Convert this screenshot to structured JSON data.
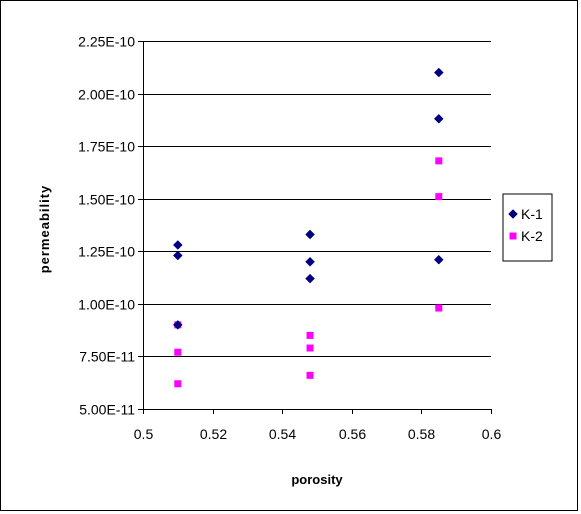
{
  "chart_data": {
    "type": "scatter",
    "title": "",
    "xlabel": "porosity",
    "ylabel": "permeability",
    "xlim": [
      0.5,
      0.6
    ],
    "ylim": [
      5e-11,
      2.25e-10
    ],
    "x_ticks": [
      "0.5",
      "0.52",
      "0.54",
      "0.56",
      "0.58",
      "0.6"
    ],
    "y_ticks": [
      "5.00E-11",
      "7.50E-11",
      "1.00E-10",
      "1.25E-10",
      "1.50E-10",
      "1.75E-10",
      "2.00E-10",
      "2.25E-10"
    ],
    "grid": "horizontal major gridlines",
    "legend_position": "right",
    "series": [
      {
        "name": "K-1",
        "marker": "diamond",
        "color": "#000080",
        "points": [
          {
            "x": 0.51,
            "y": 1.28e-10
          },
          {
            "x": 0.51,
            "y": 1.23e-10
          },
          {
            "x": 0.51,
            "y": 9e-11
          },
          {
            "x": 0.548,
            "y": 1.33e-10
          },
          {
            "x": 0.548,
            "y": 1.2e-10
          },
          {
            "x": 0.548,
            "y": 1.12e-10
          },
          {
            "x": 0.585,
            "y": 2.1e-10
          },
          {
            "x": 0.585,
            "y": 1.88e-10
          },
          {
            "x": 0.585,
            "y": 1.21e-10
          }
        ]
      },
      {
        "name": "K-2",
        "marker": "square",
        "color": "#FF00FF",
        "points": [
          {
            "x": 0.51,
            "y": 9e-11
          },
          {
            "x": 0.51,
            "y": 7.7e-11
          },
          {
            "x": 0.51,
            "y": 6.2e-11
          },
          {
            "x": 0.548,
            "y": 8.5e-11
          },
          {
            "x": 0.548,
            "y": 7.9e-11
          },
          {
            "x": 0.548,
            "y": 6.6e-11
          },
          {
            "x": 0.585,
            "y": 1.68e-10
          },
          {
            "x": 0.585,
            "y": 1.51e-10
          },
          {
            "x": 0.585,
            "y": 9.8e-11
          }
        ]
      }
    ]
  }
}
